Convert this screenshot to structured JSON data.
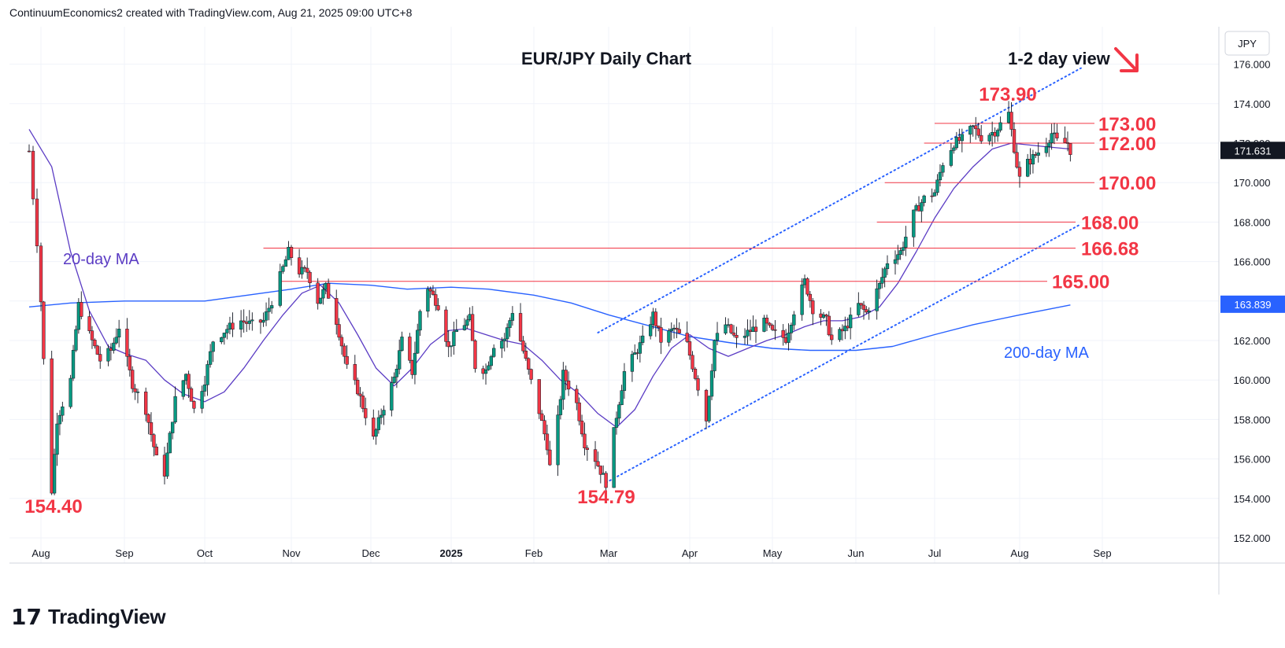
{
  "header": {
    "text": "ContinuumEconomics2 created with TradingView.com, Aug 21, 2025 09:00 UTC+8"
  },
  "footer": {
    "brand": "TradingView",
    "logo_icon": "tradingview-logo-icon"
  },
  "chart_data": {
    "type": "candlestick",
    "title": "EUR/JPY Daily Chart",
    "subtitle": "1-2 day view",
    "view_arrow": {
      "direction": "down-right",
      "color": "#f23645"
    },
    "currency": "JPY",
    "last_price": "171.631",
    "ma_price_tag": "163.839",
    "y_axis": {
      "min": 152,
      "max": 176,
      "ticks": [
        "176.000",
        "174.000",
        "172.000",
        "170.000",
        "168.000",
        "166.000",
        "164.000",
        "162.000",
        "160.000",
        "158.000",
        "156.000",
        "154.000",
        "152.000"
      ]
    },
    "x_axis": {
      "ticks": [
        "Aug",
        "Sep",
        "Oct",
        "Nov",
        "Dec",
        "2025",
        "Feb",
        "Mar",
        "Apr",
        "May",
        "Jun",
        "Jul",
        "Aug",
        "Sep"
      ]
    },
    "levels": [
      {
        "label": "173.00",
        "value": 173.0
      },
      {
        "label": "172.00",
        "value": 172.0
      },
      {
        "label": "170.00",
        "value": 170.0
      },
      {
        "label": "168.00",
        "value": 168.0
      },
      {
        "label": "166.68",
        "value": 166.68
      },
      {
        "label": "165.00",
        "value": 165.0
      }
    ],
    "annotations": [
      {
        "label": "173.90",
        "value": 173.9,
        "date": "2025-07-28"
      },
      {
        "label": "154.40",
        "value": 154.4,
        "date": "2024-08-05"
      },
      {
        "label": "154.79",
        "value": 154.79,
        "date": "2025-02-28"
      }
    ],
    "ma20_label": "20-day MA",
    "ma200_label": "200-day MA",
    "colors": {
      "up": "#089981",
      "down": "#f23645",
      "ma20": "#5b3cc4",
      "ma200": "#2962ff",
      "level": "#f23645",
      "channel": "#2962ff"
    },
    "swing_points": [
      [
        "2024-07-29",
        171.6
      ],
      [
        "2024-07-31",
        167.0
      ],
      [
        "2024-08-02",
        161.0
      ],
      [
        "2024-08-05",
        154.4
      ],
      [
        "2024-08-07",
        158.0
      ],
      [
        "2024-08-12",
        160.0
      ],
      [
        "2024-08-15",
        163.8
      ],
      [
        "2024-08-19",
        162.3
      ],
      [
        "2024-08-23",
        161.0
      ],
      [
        "2024-08-27",
        161.5
      ],
      [
        "2024-08-30",
        162.7
      ],
      [
        "2024-09-04",
        159.8
      ],
      [
        "2024-09-09",
        158.5
      ],
      [
        "2024-09-13",
        156.0
      ],
      [
        "2024-09-16",
        155.3
      ],
      [
        "2024-09-20",
        159.0
      ],
      [
        "2024-09-24",
        160.3
      ],
      [
        "2024-09-27",
        158.5
      ],
      [
        "2024-10-01",
        160.0
      ],
      [
        "2024-10-04",
        162.0
      ],
      [
        "2024-10-09",
        162.6
      ],
      [
        "2024-10-14",
        163.0
      ],
      [
        "2024-10-18",
        162.8
      ],
      [
        "2024-10-22",
        163.0
      ],
      [
        "2024-10-25",
        164.0
      ],
      [
        "2024-10-31",
        166.5
      ],
      [
        "2024-11-04",
        165.5
      ],
      [
        "2024-11-07",
        165.5
      ],
      [
        "2024-11-11",
        164.0
      ],
      [
        "2024-11-14",
        164.7
      ],
      [
        "2024-11-18",
        163.0
      ],
      [
        "2024-11-22",
        160.6
      ],
      [
        "2024-11-26",
        159.5
      ],
      [
        "2024-12-02",
        157.0
      ],
      [
        "2024-12-05",
        158.3
      ],
      [
        "2024-12-10",
        160.1
      ],
      [
        "2024-12-13",
        162.0
      ],
      [
        "2024-12-17",
        160.4
      ],
      [
        "2024-12-20",
        163.5
      ],
      [
        "2024-12-23",
        164.7
      ],
      [
        "2024-12-27",
        163.8
      ],
      [
        "2024-12-31",
        161.6
      ],
      [
        "2025-01-03",
        162.5
      ],
      [
        "2025-01-08",
        163.1
      ],
      [
        "2025-01-10",
        160.7
      ],
      [
        "2025-01-14",
        160.5
      ],
      [
        "2025-01-17",
        161.8
      ],
      [
        "2025-01-21",
        162.1
      ],
      [
        "2025-01-24",
        163.5
      ],
      [
        "2025-01-27",
        162.0
      ],
      [
        "2025-01-31",
        159.9
      ],
      [
        "2025-02-03",
        158.4
      ],
      [
        "2025-02-06",
        156.7
      ],
      [
        "2025-02-07",
        155.6
      ],
      [
        "2025-02-10",
        158.0
      ],
      [
        "2025-02-12",
        160.3
      ],
      [
        "2025-02-17",
        158.8
      ],
      [
        "2025-02-20",
        156.8
      ],
      [
        "2025-02-24",
        156.0
      ],
      [
        "2025-02-28",
        154.79
      ],
      [
        "2025-03-04",
        158.2
      ],
      [
        "2025-03-07",
        160.4
      ],
      [
        "2025-03-11",
        161.3
      ],
      [
        "2025-03-14",
        162.0
      ],
      [
        "2025-03-18",
        163.3
      ],
      [
        "2025-03-21",
        162.0
      ],
      [
        "2025-03-26",
        162.6
      ],
      [
        "2025-03-31",
        161.8
      ],
      [
        "2025-04-03",
        160.2
      ],
      [
        "2025-04-07",
        158.0
      ],
      [
        "2025-04-10",
        162.0
      ],
      [
        "2025-04-14",
        162.8
      ],
      [
        "2025-04-18",
        162.0
      ],
      [
        "2025-04-23",
        162.5
      ],
      [
        "2025-04-28",
        162.9
      ],
      [
        "2025-05-01",
        162.4
      ],
      [
        "2025-05-06",
        162.1
      ],
      [
        "2025-05-09",
        163.5
      ],
      [
        "2025-05-13",
        165.0
      ],
      [
        "2025-05-16",
        163.6
      ],
      [
        "2025-05-21",
        163.0
      ],
      [
        "2025-05-23",
        162.0
      ],
      [
        "2025-05-28",
        162.6
      ],
      [
        "2025-06-02",
        163.8
      ],
      [
        "2025-06-05",
        163.4
      ],
      [
        "2025-06-10",
        164.8
      ],
      [
        "2025-06-13",
        166.0
      ],
      [
        "2025-06-18",
        166.5
      ],
      [
        "2025-06-23",
        168.4
      ],
      [
        "2025-06-27",
        169.2
      ],
      [
        "2025-07-01",
        169.5
      ],
      [
        "2025-07-04",
        171.0
      ],
      [
        "2025-07-08",
        172.0
      ],
      [
        "2025-07-11",
        172.2
      ],
      [
        "2025-07-15",
        172.8
      ],
      [
        "2025-07-18",
        172.3
      ],
      [
        "2025-07-23",
        172.6
      ],
      [
        "2025-07-28",
        173.5
      ],
      [
        "2025-07-31",
        170.9
      ],
      [
        "2025-08-01",
        170.2
      ],
      [
        "2025-08-04",
        171.0
      ],
      [
        "2025-08-07",
        171.4
      ],
      [
        "2025-08-11",
        172.0
      ],
      [
        "2025-08-13",
        172.5
      ],
      [
        "2025-08-15",
        172.1
      ],
      [
        "2025-08-19",
        172.0
      ],
      [
        "2025-08-20",
        171.63
      ]
    ],
    "ma20": [
      [
        "2024-07-29",
        172.7
      ],
      [
        "2024-08-05",
        170.8
      ],
      [
        "2024-08-12",
        166.5
      ],
      [
        "2024-08-19",
        163.5
      ],
      [
        "2024-08-26",
        161.7
      ],
      [
        "2024-09-02",
        161.3
      ],
      [
        "2024-09-09",
        161.0
      ],
      [
        "2024-09-16",
        160.0
      ],
      [
        "2024-09-23",
        159.3
      ],
      [
        "2024-10-01",
        158.9
      ],
      [
        "2024-10-08",
        159.4
      ],
      [
        "2024-10-15",
        160.6
      ],
      [
        "2024-10-22",
        162.0
      ],
      [
        "2024-10-29",
        163.3
      ],
      [
        "2024-11-05",
        164.4
      ],
      [
        "2024-11-12",
        164.8
      ],
      [
        "2024-11-19",
        163.9
      ],
      [
        "2024-11-26",
        162.3
      ],
      [
        "2024-12-03",
        160.6
      ],
      [
        "2024-12-10",
        159.7
      ],
      [
        "2024-12-17",
        160.6
      ],
      [
        "2024-12-24",
        161.8
      ],
      [
        "2024-12-31",
        162.5
      ],
      [
        "2025-01-07",
        162.6
      ],
      [
        "2025-01-14",
        162.3
      ],
      [
        "2025-01-21",
        162.0
      ],
      [
        "2025-01-28",
        161.8
      ],
      [
        "2025-02-04",
        161.0
      ],
      [
        "2025-02-11",
        160.0
      ],
      [
        "2025-02-18",
        159.3
      ],
      [
        "2025-02-25",
        158.3
      ],
      [
        "2025-03-04",
        157.6
      ],
      [
        "2025-03-11",
        158.5
      ],
      [
        "2025-03-18",
        160.2
      ],
      [
        "2025-03-25",
        161.6
      ],
      [
        "2025-04-01",
        162.3
      ],
      [
        "2025-04-08",
        161.6
      ],
      [
        "2025-04-15",
        161.2
      ],
      [
        "2025-04-22",
        161.6
      ],
      [
        "2025-04-29",
        162.0
      ],
      [
        "2025-05-06",
        162.3
      ],
      [
        "2025-05-13",
        162.7
      ],
      [
        "2025-05-20",
        163.0
      ],
      [
        "2025-05-27",
        163.0
      ],
      [
        "2025-06-03",
        163.2
      ],
      [
        "2025-06-10",
        163.7
      ],
      [
        "2025-06-17",
        164.9
      ],
      [
        "2025-06-24",
        166.5
      ],
      [
        "2025-07-01",
        168.2
      ],
      [
        "2025-07-08",
        169.7
      ],
      [
        "2025-07-15",
        170.8
      ],
      [
        "2025-07-22",
        171.7
      ],
      [
        "2025-07-29",
        172.0
      ],
      [
        "2025-08-05",
        171.9
      ],
      [
        "2025-08-12",
        171.8
      ],
      [
        "2025-08-20",
        171.7
      ]
    ],
    "ma200": [
      [
        "2024-07-29",
        163.7
      ],
      [
        "2024-08-12",
        163.9
      ],
      [
        "2024-09-01",
        164.0
      ],
      [
        "2024-10-01",
        164.0
      ],
      [
        "2024-11-01",
        164.6
      ],
      [
        "2024-11-15",
        164.9
      ],
      [
        "2024-12-01",
        164.8
      ],
      [
        "2024-12-15",
        164.6
      ],
      [
        "2025-01-01",
        164.7
      ],
      [
        "2025-01-15",
        164.6
      ],
      [
        "2025-02-01",
        164.3
      ],
      [
        "2025-02-15",
        163.9
      ],
      [
        "2025-03-01",
        163.3
      ],
      [
        "2025-03-15",
        162.8
      ],
      [
        "2025-04-01",
        162.2
      ],
      [
        "2025-04-15",
        161.9
      ],
      [
        "2025-05-01",
        161.6
      ],
      [
        "2025-05-15",
        161.5
      ],
      [
        "2025-06-01",
        161.5
      ],
      [
        "2025-06-15",
        161.7
      ],
      [
        "2025-07-01",
        162.3
      ],
      [
        "2025-07-15",
        162.8
      ],
      [
        "2025-08-01",
        163.3
      ],
      [
        "2025-08-20",
        163.8
      ]
    ],
    "channel": {
      "upper": [
        [
          "2025-02-25",
          162.4
        ],
        [
          "2025-08-24",
          175.8
        ]
      ],
      "lower": [
        [
          "2025-02-28",
          154.8
        ],
        [
          "2025-08-24",
          167.9
        ]
      ]
    }
  }
}
